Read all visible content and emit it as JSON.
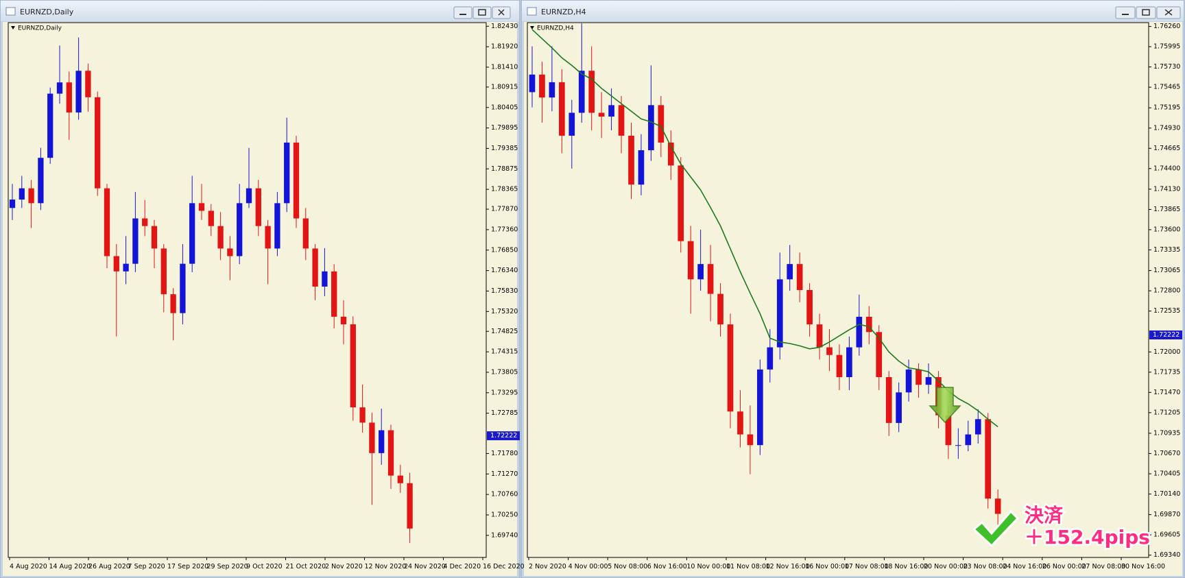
{
  "chart_data": [
    {
      "type": "candlestick",
      "title": "EURNZD,Daily",
      "open": [
        1.779,
        1.7811,
        1.7839,
        1.7802,
        1.7915,
        1.8075,
        1.8103,
        1.8028,
        1.8132,
        1.8066,
        1.7839,
        1.767,
        1.7632,
        1.7651,
        1.7764,
        1.7745,
        1.7689,
        1.7575,
        1.7528,
        1.7651,
        1.7802,
        1.7783,
        1.7745,
        1.7689,
        1.767,
        1.7802,
        1.7839,
        1.7745,
        1.7689,
        1.7802,
        1.7953,
        1.7764,
        1.7689,
        1.7594,
        1.7632,
        1.7519,
        1.75,
        1.7293,
        1.7255,
        1.7179,
        1.7236,
        1.7123,
        1.7104
      ],
      "high": [
        1.785,
        1.787,
        1.786,
        1.794,
        1.809,
        1.8195,
        1.813,
        1.8215,
        1.815,
        1.808,
        1.785,
        1.77,
        1.772,
        1.783,
        1.781,
        1.776,
        1.77,
        1.759,
        1.77,
        1.787,
        1.785,
        1.78,
        1.778,
        1.772,
        1.785,
        1.794,
        1.786,
        1.776,
        1.783,
        1.8015,
        1.797,
        1.779,
        1.77,
        1.769,
        1.765,
        1.756,
        1.752,
        1.735,
        1.728,
        1.729,
        1.725,
        1.715,
        1.713
      ],
      "low": [
        1.776,
        1.779,
        1.774,
        1.7785,
        1.79,
        1.805,
        1.796,
        1.801,
        1.803,
        1.782,
        1.764,
        1.747,
        1.76,
        1.763,
        1.772,
        1.764,
        1.753,
        1.746,
        1.75,
        1.763,
        1.776,
        1.772,
        1.766,
        1.761,
        1.765,
        1.779,
        1.772,
        1.76,
        1.767,
        1.778,
        1.774,
        1.766,
        1.756,
        1.757,
        1.749,
        1.745,
        1.726,
        1.723,
        1.705,
        1.715,
        1.709,
        1.708,
        1.6955
      ],
      "close": [
        1.7811,
        1.7839,
        1.7802,
        1.7915,
        1.8075,
        1.8103,
        1.8028,
        1.8132,
        1.8066,
        1.7839,
        1.767,
        1.7632,
        1.7651,
        1.7764,
        1.7745,
        1.7689,
        1.7575,
        1.7528,
        1.7651,
        1.7802,
        1.7783,
        1.7745,
        1.7689,
        1.767,
        1.7802,
        1.7839,
        1.7745,
        1.7689,
        1.7802,
        1.7953,
        1.7764,
        1.7689,
        1.7594,
        1.7632,
        1.7519,
        1.75,
        1.7293,
        1.7255,
        1.7179,
        1.7236,
        1.7123,
        1.7104,
        1.6991
      ],
      "up_color": "#1414d8",
      "down_color": "#e21414",
      "ylim": [
        1.6919,
        1.8252
      ],
      "yticks": [
        {
          "value": 1.8243,
          "label": "1.82430"
        },
        {
          "value": 1.8192,
          "label": "1.81920"
        },
        {
          "value": 1.8141,
          "label": "1.81410"
        },
        1.80915,
        1.80405,
        1.79895,
        1.79385,
        1.78875,
        1.78365,
        {
          "value": 1.7787,
          "label": "1.77870"
        },
        {
          "value": 1.7736,
          "label": "1.77360"
        },
        {
          "value": 1.7685,
          "label": "1.76850"
        },
        {
          "value": 1.7634,
          "label": "1.76340"
        },
        {
          "value": 1.7583,
          "label": "1.75830"
        },
        {
          "value": 1.7532,
          "label": "1.75320"
        },
        1.74825,
        1.74315,
        1.73805,
        1.73295,
        1.72785,
        {
          "value": 1.7178,
          "label": "1.71780"
        },
        {
          "value": 1.7127,
          "label": "1.71270"
        },
        {
          "value": 1.7076,
          "label": "1.70760"
        },
        {
          "value": 1.7025,
          "label": "1.70250"
        },
        {
          "value": 1.6974,
          "label": "1.69740"
        }
      ],
      "xticks": [
        "4 Aug 2020",
        "14 Aug 2020",
        "26 Aug 2020",
        "7 Sep 2020",
        "17 Sep 2020",
        "29 Sep 2020",
        "9 Oct 2020",
        "21 Oct 2020",
        "2 Nov 2020",
        "12 Nov 2020",
        "24 Nov 2020",
        "4 Dec 2020",
        "16 Dec 2020"
      ],
      "last_price": 1.72222,
      "last_price_color": "#1a1acc"
    },
    {
      "type": "candlestick",
      "title": "EURNZD,H4",
      "open": [
        1.754,
        1.7563,
        1.7533,
        1.7553,
        1.7483,
        1.7513,
        1.7568,
        1.7513,
        1.7508,
        1.7523,
        1.7483,
        1.7419,
        1.7464,
        1.7523,
        1.7474,
        1.7444,
        1.7345,
        1.7295,
        1.7315,
        1.7276,
        1.7236,
        1.7122,
        1.7092,
        1.7078,
        1.7177,
        1.7206,
        1.7295,
        1.7315,
        1.7281,
        1.7236,
        1.7206,
        1.7196,
        1.7167,
        1.7206,
        1.7246,
        1.7226,
        1.7167,
        1.7107,
        1.7147,
        1.7177,
        1.7157,
        1.7167,
        1.7117,
        1.7078,
        1.7078,
        1.7092,
        1.7112,
        1.7008
      ],
      "high": [
        1.76,
        1.758,
        1.76,
        1.757,
        1.753,
        1.763,
        1.76,
        1.754,
        1.7545,
        1.7535,
        1.75,
        1.7485,
        1.7575,
        1.7535,
        1.749,
        1.7455,
        1.7365,
        1.736,
        1.734,
        1.729,
        1.725,
        1.715,
        1.713,
        1.719,
        1.723,
        1.733,
        1.734,
        1.733,
        1.729,
        1.725,
        1.723,
        1.721,
        1.722,
        1.7275,
        1.726,
        1.7235,
        1.7175,
        1.716,
        1.719,
        1.7185,
        1.7185,
        1.7175,
        1.713,
        1.71,
        1.711,
        1.7125,
        1.712,
        1.702
      ],
      "low": [
        1.752,
        1.75,
        1.7515,
        1.746,
        1.744,
        1.75,
        1.749,
        1.748,
        1.749,
        1.746,
        1.74,
        1.7405,
        1.745,
        1.7455,
        1.7425,
        1.733,
        1.725,
        1.728,
        1.724,
        1.722,
        1.71,
        1.7075,
        1.704,
        1.7065,
        1.716,
        1.719,
        1.728,
        1.7265,
        1.722,
        1.719,
        1.7175,
        1.715,
        1.715,
        1.7195,
        1.721,
        1.715,
        1.709,
        1.7095,
        1.7135,
        1.714,
        1.7145,
        1.71,
        1.706,
        1.706,
        1.707,
        1.708,
        1.6995,
        1.696
      ],
      "close": [
        1.7563,
        1.7533,
        1.7553,
        1.7483,
        1.7513,
        1.7568,
        1.7513,
        1.7508,
        1.7523,
        1.7483,
        1.7419,
        1.7464,
        1.7523,
        1.7474,
        1.7444,
        1.7345,
        1.7295,
        1.7315,
        1.7276,
        1.7236,
        1.7122,
        1.7092,
        1.7078,
        1.7177,
        1.7206,
        1.7295,
        1.7315,
        1.7281,
        1.7236,
        1.7206,
        1.7196,
        1.7167,
        1.7206,
        1.7246,
        1.7226,
        1.7167,
        1.7107,
        1.7147,
        1.7177,
        1.7157,
        1.7167,
        1.7117,
        1.7078,
        1.7078,
        1.7092,
        1.7112,
        1.7008,
        1.6988
      ],
      "ma": {
        "color": "#1b7a1b",
        "values": [
          1.7622,
          1.761,
          1.7598,
          1.7585,
          1.7575,
          1.7564,
          1.7557,
          1.7545,
          1.7535,
          1.7525,
          1.7515,
          1.7505,
          1.7501,
          1.7495,
          1.7469,
          1.7446,
          1.7429,
          1.7412,
          1.7389,
          1.7365,
          1.7335,
          1.7305,
          1.7277,
          1.725,
          1.7218,
          1.7213,
          1.7211,
          1.7208,
          1.7204,
          1.7206,
          1.7213,
          1.7221,
          1.7229,
          1.7236,
          1.7233,
          1.7218,
          1.72,
          1.7188,
          1.7179,
          1.7177,
          1.7174,
          1.7162,
          1.7149,
          1.7139,
          1.7132,
          1.7123,
          1.7112,
          1.7102
        ]
      },
      "up_color": "#1414d8",
      "down_color": "#e21414",
      "ylim": [
        1.6931,
        1.7631
      ],
      "yticks": [
        {
          "value": 1.7626,
          "label": "1.76260"
        },
        1.75995,
        {
          "value": 1.7573,
          "label": "1.75730"
        },
        1.75465,
        1.75195,
        {
          "value": 1.7493,
          "label": "1.74930"
        },
        1.74665,
        {
          "value": 1.744,
          "label": "1.74400"
        },
        {
          "value": 1.7413,
          "label": "1.74130"
        },
        1.73865,
        {
          "value": 1.736,
          "label": "1.73600"
        },
        1.73335,
        1.73065,
        {
          "value": 1.728,
          "label": "1.72800"
        },
        1.72535,
        {
          "value": 1.72,
          "label": "1.72000"
        },
        1.71735,
        {
          "value": 1.7147,
          "label": "1.71470"
        },
        1.71205,
        1.70935,
        {
          "value": 1.7067,
          "label": "1.70670"
        },
        1.70405,
        {
          "value": 1.7014,
          "label": "1.70140"
        },
        {
          "value": 1.6987,
          "label": "1.69870"
        },
        1.69605,
        {
          "value": 1.6934,
          "label": "1.69340"
        }
      ],
      "xticks": [
        "2 Nov 2020",
        "4 Nov 00:00",
        "5 Nov 08:00",
        "6 Nov 16:00",
        "10 Nov 00:00",
        "11 Nov 08:00",
        "12 Nov 16:00",
        "16 Nov 00:00",
        "17 Nov 08:00",
        "18 Nov 16:00",
        "20 Nov 00:00",
        "23 Nov 08:00",
        "24 Nov 16:00",
        "26 Nov 00:00",
        "27 Nov 08:00",
        "30 Nov 16:00"
      ],
      "last_price": 1.72222,
      "last_price_color": "#1a1acc",
      "annotations": [
        "決済",
        "＋152.4pips"
      ]
    }
  ]
}
